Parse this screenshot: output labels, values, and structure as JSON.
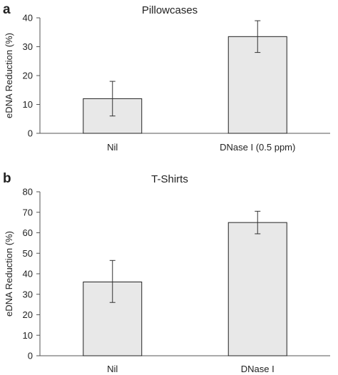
{
  "chart_data": [
    {
      "type": "bar",
      "panel_label": "a",
      "title": "Pillowcases",
      "xlabel": "",
      "ylabel": "eDNA Reduction (%)",
      "categories": [
        "Nil",
        "DNase I (0.5 ppm)"
      ],
      "values": [
        12,
        33.5
      ],
      "error_low": [
        6,
        28
      ],
      "error_high": [
        18,
        39
      ],
      "ylim": [
        0,
        40
      ],
      "yticks": [
        0,
        10,
        20,
        30,
        40
      ],
      "grid": false,
      "bar_color": "#e8e8e8",
      "edge_color": "#222222"
    },
    {
      "type": "bar",
      "panel_label": "b",
      "title": "T-Shirts",
      "xlabel": "",
      "ylabel": "eDNA Reduction (%)",
      "categories": [
        "Nil",
        "DNase I"
      ],
      "values": [
        36,
        65
      ],
      "error_low": [
        26,
        59.5
      ],
      "error_high": [
        46.5,
        70.5
      ],
      "ylim": [
        0,
        80
      ],
      "yticks": [
        0,
        10,
        20,
        30,
        40,
        50,
        60,
        70,
        80
      ],
      "grid": false,
      "bar_color": "#e8e8e8",
      "edge_color": "#222222"
    }
  ]
}
